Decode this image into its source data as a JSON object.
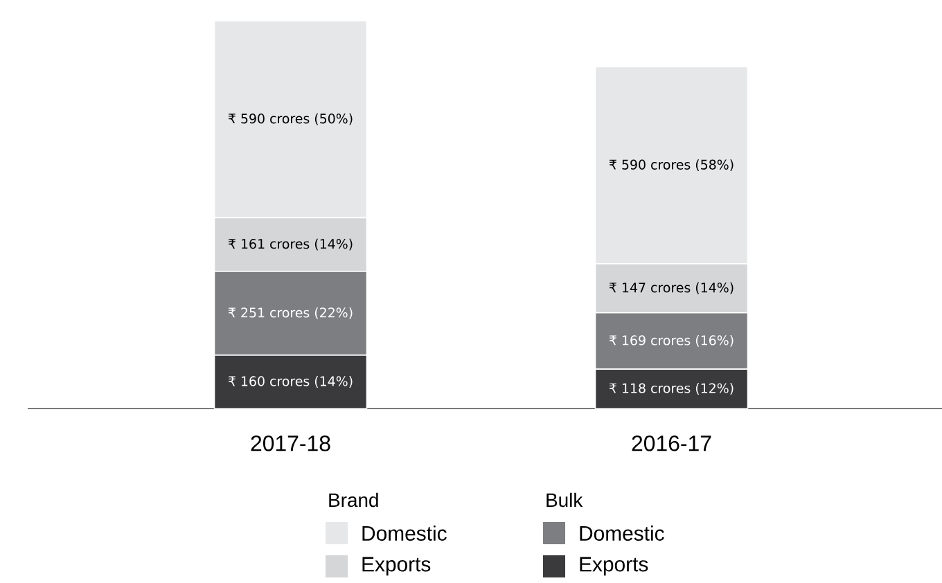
{
  "chart_data": {
    "type": "bar",
    "stacked": true,
    "categories": [
      "2017-18",
      "2016-17"
    ],
    "series": [
      {
        "name": "Exports",
        "color": "#3a3a3c",
        "values": [
          160,
          118
        ],
        "value_labels": [
          "₹ 160 crores (14%)",
          "₹ 118 crores (12%)"
        ]
      },
      {
        "name": "Domestic",
        "color": "#7d7e82",
        "values": [
          251,
          169
        ],
        "value_labels": [
          "₹ 251 crores (22%)",
          "₹ 169 crores (16%)"
        ]
      },
      {
        "name": "Exports",
        "color": "#d5d6d8",
        "values": [
          161,
          147
        ],
        "value_labels": [
          "₹ 161 crores (14%)",
          "₹ 147 crores (14%)"
        ]
      },
      {
        "name": "Domestic",
        "color": "#e6e7e9",
        "values": [
          590,
          590
        ],
        "value_labels": [
          "₹ 590 crores (50%)",
          "₹ 590 crores (58%)"
        ]
      }
    ],
    "annotations": [
      "Brand",
      "Bulk"
    ],
    "legend": "bottom"
  }
}
